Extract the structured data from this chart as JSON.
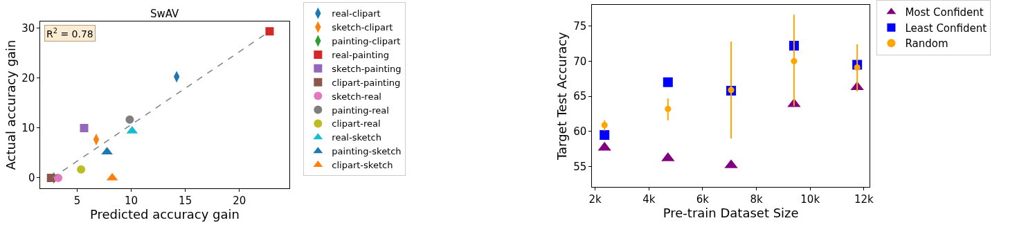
{
  "chart_data": [
    {
      "type": "scatter",
      "title": "SwAV",
      "xlabel": "Predicted accuracy gain",
      "ylabel": "Actual accuracy gain",
      "xlim": [
        1.6,
        24.6
      ],
      "ylim": [
        -2.1,
        31.4
      ],
      "xticks": [
        5,
        10,
        15,
        20
      ],
      "yticks": [
        0,
        10,
        20,
        30
      ],
      "legend": "right",
      "annotations": [
        "R$^{2}$ = 0.78"
      ],
      "series": [
        {
          "name": "real-clipart",
          "color": "#1f77b4",
          "marker": "diamond",
          "x": [
            14.2
          ],
          "values": [
            20.3
          ]
        },
        {
          "name": "sketch-clipart",
          "color": "#ff7f0e",
          "marker": "diamond",
          "x": [
            6.76
          ],
          "values": [
            7.7
          ]
        },
        {
          "name": "painting-clipart",
          "color": "#2ca02c",
          "marker": "diamond",
          "x": [
            2.84
          ],
          "values": [
            0
          ]
        },
        {
          "name": "real-painting",
          "color": "#d62728",
          "marker": "square",
          "x": [
            22.8
          ],
          "values": [
            29.4
          ]
        },
        {
          "name": "sketch-painting",
          "color": "#9467bd",
          "marker": "square",
          "x": [
            5.64
          ],
          "values": [
            10
          ]
        },
        {
          "name": "clipart-painting",
          "color": "#8c564b",
          "marker": "square",
          "x": [
            2.58
          ],
          "values": [
            0
          ]
        },
        {
          "name": "sketch-real",
          "color": "#e377c2",
          "marker": "circle",
          "x": [
            3.24
          ],
          "values": [
            0
          ]
        },
        {
          "name": "painting-real",
          "color": "#7f7f7f",
          "marker": "circle",
          "x": [
            9.86
          ],
          "values": [
            11.7
          ]
        },
        {
          "name": "clipart-real",
          "color": "#bcbd22",
          "marker": "circle",
          "x": [
            5.36
          ],
          "values": [
            1.7
          ]
        },
        {
          "name": "real-sketch",
          "color": "#17becf",
          "marker": "triangle",
          "x": [
            10.08
          ],
          "values": [
            9.4
          ]
        },
        {
          "name": "painting-sketch",
          "color": "#1f77b4",
          "marker": "triangle",
          "x": [
            7.76
          ],
          "values": [
            5.2
          ]
        },
        {
          "name": "clipart-sketch",
          "color": "#ff7f0e",
          "marker": "triangle",
          "x": [
            8.24
          ],
          "values": [
            0
          ]
        },
        {
          "type": "line",
          "color": "#808080",
          "line_style": "dashed",
          "marker": "none",
          "x": [
            2.7,
            22.8
          ],
          "values": [
            0,
            29.4
          ]
        }
      ]
    },
    {
      "type": "scatter",
      "xlabel": "Pre-train Dataset Size",
      "ylabel": "Target Test Accuracy",
      "xlim": [
        1890,
        12210
      ],
      "ylim": [
        52.1,
        78
      ],
      "xticks": [
        {
          "value": 2000,
          "label": "2k"
        },
        {
          "value": 4000,
          "label": "4k"
        },
        {
          "value": 6000,
          "label": "6k"
        },
        {
          "value": 8000,
          "label": "8k"
        },
        {
          "value": 10000,
          "label": "10k"
        },
        {
          "value": 12000,
          "label": "12k"
        }
      ],
      "yticks": [
        55,
        60,
        65,
        70,
        75
      ],
      "legend": "top right",
      "x": [
        2350,
        4710,
        7060,
        9400,
        11750
      ],
      "series": [
        {
          "name": "Most Confident",
          "color": "#800080",
          "marker": "triangle",
          "values": [
            57.7,
            56.2,
            55.2,
            63.9,
            66.3
          ]
        },
        {
          "name": "Least Confident",
          "color": "#0000ff",
          "marker": "square",
          "values": [
            59.5,
            67.0,
            65.8,
            72.2,
            69.5
          ]
        },
        {
          "name": "Random",
          "color": "#ffa500",
          "marker": "circle",
          "values": [
            60.9,
            63.2,
            65.9,
            70.0,
            69.1
          ],
          "errors": [
            [
              60.1,
              61.6
            ],
            [
              61.6,
              64.7
            ],
            [
              59.0,
              72.8
            ],
            [
              63.6,
              76.6
            ],
            [
              65.7,
              72.4
            ]
          ]
        }
      ]
    }
  ]
}
